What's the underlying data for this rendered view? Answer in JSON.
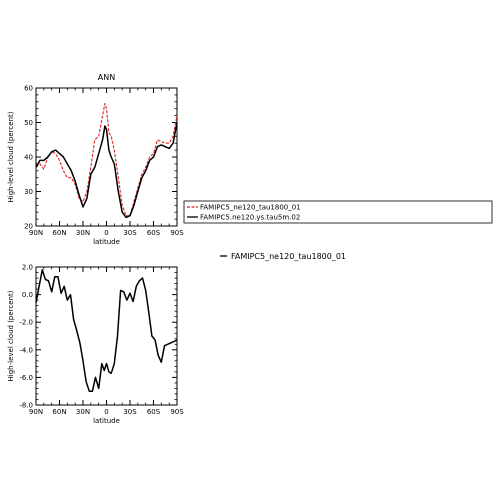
{
  "chart_data": [
    {
      "type": "line",
      "title": "ANN",
      "xlabel": "latitude",
      "ylabel": "High-level cloud (percent)",
      "xlim": [
        90,
        -90
      ],
      "ylim": [
        20,
        60
      ],
      "xticks": [
        90,
        60,
        30,
        0,
        -30,
        -60,
        -90
      ],
      "xtick_labels": [
        "90N",
        "60N",
        "30N",
        "0",
        "30S",
        "60S",
        "90S"
      ],
      "yticks": [
        20,
        30,
        40,
        50,
        60
      ],
      "ytick_labels": [
        "20",
        "30",
        "40",
        "50",
        "60"
      ],
      "legend": {
        "placement": "right",
        "entries": [
          "FAMIPC5_ne120_tau1800_01",
          "FAMIPC5.ne120.ys.tau5m.02"
        ]
      },
      "series": [
        {
          "name": "FAMIPC5_ne120_tau1800_01",
          "color": "#dd2222",
          "dash": true,
          "x": [
            90,
            85,
            80,
            75,
            70,
            65,
            60,
            55,
            50,
            45,
            40,
            35,
            30,
            25,
            20,
            15,
            10,
            5,
            2,
            0,
            -3,
            -6,
            -10,
            -15,
            -20,
            -25,
            -30,
            -35,
            -40,
            -45,
            -50,
            -55,
            -60,
            -65,
            -70,
            -75,
            -80,
            -85,
            -90
          ],
          "y": [
            37,
            38,
            36.5,
            40,
            41.5,
            41,
            39,
            36,
            34,
            34,
            32,
            28,
            27,
            30,
            37,
            45,
            46,
            52,
            55.5,
            54,
            47,
            46,
            42,
            34,
            26,
            23,
            23,
            27,
            31,
            35,
            37,
            40,
            41,
            45,
            44.5,
            44,
            44,
            46,
            52
          ]
        },
        {
          "name": "FAMIPC5.ne120.ys.tau5m.02",
          "color": "#000000",
          "dash": false,
          "x": [
            90,
            85,
            80,
            75,
            70,
            65,
            60,
            55,
            50,
            45,
            40,
            35,
            30,
            25,
            20,
            15,
            10,
            5,
            2,
            0,
            -3,
            -6,
            -10,
            -15,
            -20,
            -25,
            -30,
            -35,
            -40,
            -45,
            -50,
            -55,
            -60,
            -65,
            -70,
            -75,
            -80,
            -85,
            -90
          ],
          "y": [
            37,
            39,
            39,
            40,
            41.5,
            42,
            41,
            40,
            38,
            36,
            33,
            29,
            25.5,
            28,
            35,
            37,
            41,
            45,
            49,
            48,
            42,
            40,
            38,
            30,
            24,
            22.5,
            23,
            26,
            30,
            34,
            36,
            39,
            40,
            43,
            43.5,
            43,
            42.5,
            44,
            50
          ]
        }
      ]
    },
    {
      "type": "line",
      "title": "",
      "xlabel": "latitude",
      "ylabel": "High-level cloud (percent)",
      "xlim": [
        90,
        -90
      ],
      "ylim": [
        -8,
        2
      ],
      "xticks": [
        90,
        60,
        30,
        0,
        -30,
        -60,
        -90
      ],
      "xtick_labels": [
        "90N",
        "60N",
        "30N",
        "0",
        "30S",
        "60S",
        "90S"
      ],
      "yticks": [
        -8,
        -6,
        -4,
        -2,
        0,
        2
      ],
      "ytick_labels": [
        "-8.0",
        "-6.0",
        "-4.0",
        "-2.0",
        "0.0",
        "2.0"
      ],
      "legend": {
        "placement": "right",
        "entries": [
          "FAMIPC5_ne120_tau1800_01"
        ]
      },
      "series": [
        {
          "name": "FAMIPC5_ne120_tau1800_01",
          "color": "#000000",
          "dash": false,
          "x": [
            90,
            86,
            82,
            78,
            74,
            70,
            66,
            62,
            58,
            54,
            50,
            46,
            42,
            38,
            34,
            30,
            26,
            22,
            18,
            14,
            10,
            6,
            3,
            0,
            -3,
            -6,
            -10,
            -14,
            -18,
            -22,
            -26,
            -30,
            -34,
            -38,
            -42,
            -46,
            -50,
            -54,
            -58,
            -62,
            -66,
            -70,
            -74,
            -78,
            -82,
            -86,
            -90
          ],
          "y": [
            -0.6,
            0.6,
            1.8,
            1.1,
            1.0,
            0.2,
            1.3,
            1.3,
            0.1,
            0.6,
            -0.4,
            0.0,
            -1.8,
            -2.6,
            -3.5,
            -4.8,
            -6.3,
            -7.0,
            -7.0,
            -6.0,
            -6.8,
            -5.0,
            -5.5,
            -5.0,
            -5.6,
            -5.7,
            -5.0,
            -3.0,
            0.3,
            0.2,
            -0.4,
            0.1,
            -0.5,
            0.6,
            1.0,
            1.2,
            0.3,
            -1.3,
            -3.0,
            -3.3,
            -4.4,
            -4.9,
            -3.7,
            -3.6,
            -3.5,
            -3.4,
            -3.3
          ]
        }
      ]
    }
  ]
}
